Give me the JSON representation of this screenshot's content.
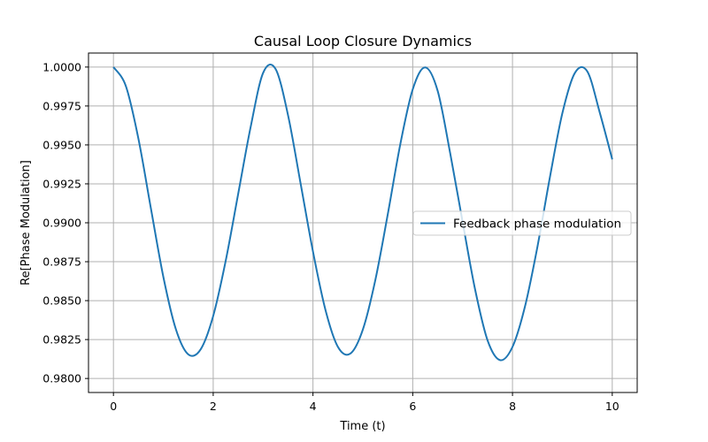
{
  "chart_data": {
    "type": "line",
    "title": "Causal Loop Closure Dynamics",
    "xlabel": "Time (t)",
    "ylabel": "Re[Phase Modulation]",
    "xlim": [
      -0.5,
      10.5
    ],
    "ylim": [
      0.9791,
      1.0009
    ],
    "xticks": [
      0,
      2,
      4,
      6,
      8,
      10
    ],
    "yticks": [
      0.98,
      0.9825,
      0.985,
      0.9875,
      0.99,
      0.9925,
      0.995,
      0.9975,
      1.0
    ],
    "xtick_labels": [
      "0",
      "2",
      "4",
      "6",
      "8",
      "10"
    ],
    "ytick_labels": [
      "0.9800",
      "0.9825",
      "0.9850",
      "0.9875",
      "0.9900",
      "0.9925",
      "0.9950",
      "0.9975",
      "1.0000"
    ],
    "grid": true,
    "legend_position": "center-right",
    "series": [
      {
        "name": "Feedback phase modulation",
        "color": "#1f77b4",
        "x": [
          0,
          0.25,
          0.5,
          0.75,
          1,
          1.25,
          1.5,
          1.75,
          2,
          2.25,
          2.5,
          2.75,
          3,
          3.25,
          3.5,
          3.75,
          4,
          4.25,
          4.5,
          4.75,
          5,
          5.25,
          5.5,
          5.75,
          6,
          6.25,
          6.5,
          6.75,
          7,
          7.25,
          7.5,
          7.75,
          8,
          8.25,
          8.5,
          8.75,
          9,
          9.25,
          9.5,
          9.75,
          10
        ],
        "y": [
          1.0,
          0.99877,
          0.99541,
          0.99094,
          0.98653,
          0.98318,
          0.98155,
          0.98188,
          0.98402,
          0.98755,
          0.99184,
          0.99614,
          0.99962,
          0.99988,
          0.99691,
          0.99256,
          0.98815,
          0.98441,
          0.98203,
          0.9816,
          0.98314,
          0.98632,
          0.99055,
          0.99503,
          0.99857,
          0.99998,
          0.99847,
          0.99448,
          0.99005,
          0.98572,
          0.98245,
          0.98118,
          0.98203,
          0.98462,
          0.98846,
          0.99292,
          0.99704,
          0.99962,
          0.99972,
          0.99707,
          0.99407
        ]
      }
    ]
  }
}
